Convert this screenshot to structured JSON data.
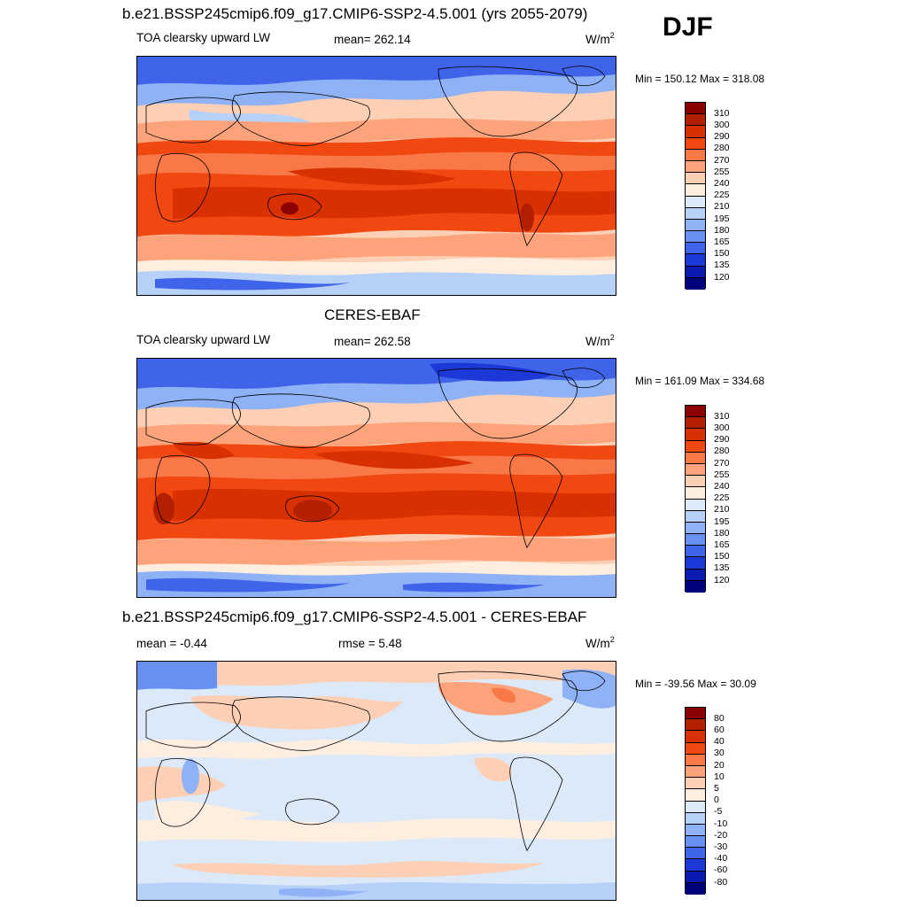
{
  "season": "DJF",
  "panels": [
    {
      "title": "b.e21.BSSP245cmip6.f09_g17.CMIP6-SSP2-4.5.001 (yrs 2055-2079)",
      "left_label": "TOA clearsky upward LW",
      "center_label": "mean= 262.14",
      "units_base": "W/m",
      "units_exp": "2",
      "minmax": "Min = 150.12 Max = 318.08",
      "kind": "abs"
    },
    {
      "title": "CERES-EBAF",
      "left_label": "TOA clearsky upward LW",
      "center_label": "mean= 262.58",
      "units_base": "W/m",
      "units_exp": "2",
      "minmax": "Min = 161.09 Max = 334.68",
      "kind": "abs"
    },
    {
      "title": "b.e21.BSSP245cmip6.f09_g17.CMIP6-SSP2-4.5.001 - CERES-EBAF",
      "left_label": "mean =  -0.44",
      "center_label": "rmse =   5.48",
      "units_base": "W/m",
      "units_exp": "2",
      "minmax": "Min = -39.56 Max =  30.09",
      "kind": "diff"
    }
  ],
  "colorbars": {
    "abs": {
      "levels": [
        "310",
        "300",
        "290",
        "280",
        "270",
        "255",
        "240",
        "225",
        "210",
        "195",
        "180",
        "165",
        "150",
        "135",
        "120"
      ],
      "colors": [
        "#8b0000",
        "#b22000",
        "#d83000",
        "#f04810",
        "#f87848",
        "#fca37c",
        "#fdcfb4",
        "#fdeee0",
        "#dce9f8",
        "#b7d0f8",
        "#8fb2f6",
        "#6890f2",
        "#3f64ea",
        "#1c38d6",
        "#0a1ab0",
        "#00007a"
      ]
    },
    "diff": {
      "levels": [
        "80",
        "60",
        "40",
        "30",
        "20",
        "10",
        "5",
        "0",
        "-5",
        "-10",
        "-20",
        "-30",
        "-40",
        "-60",
        "-80"
      ],
      "colors": [
        "#8b0000",
        "#b22000",
        "#d83000",
        "#f04810",
        "#f87848",
        "#fca37c",
        "#fdcfb4",
        "#fdeee0",
        "#dce9f8",
        "#b7d0f8",
        "#8fb2f6",
        "#6890f2",
        "#3f64ea",
        "#1c38d6",
        "#0a1ab0",
        "#00007a"
      ]
    }
  }
}
